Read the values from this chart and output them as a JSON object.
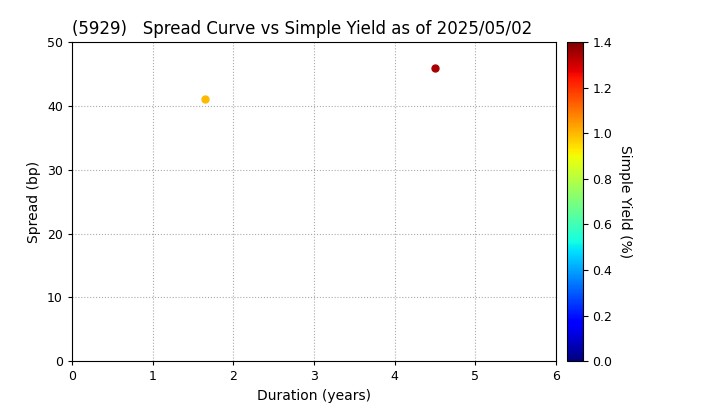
{
  "title": "(5929)   Spread Curve vs Simple Yield as of 2025/05/02",
  "xlabel": "Duration (years)",
  "ylabel": "Spread (bp)",
  "colorbar_label": "Simple Yield (%)",
  "xlim": [
    0,
    6
  ],
  "ylim": [
    0,
    50
  ],
  "xticks": [
    0,
    1,
    2,
    3,
    4,
    5,
    6
  ],
  "yticks": [
    0,
    10,
    20,
    30,
    40,
    50
  ],
  "points": [
    {
      "duration": 1.65,
      "spread": 41.0,
      "simple_yield": 1.0
    },
    {
      "duration": 4.5,
      "spread": 46.0,
      "simple_yield": 1.35
    }
  ],
  "colorbar_vmin": 0.0,
  "colorbar_vmax": 1.4,
  "colorbar_ticks": [
    0.0,
    0.2,
    0.4,
    0.6,
    0.8,
    1.0,
    1.2,
    1.4
  ],
  "cmap": "jet",
  "marker_size": 25,
  "background_color": "#ffffff",
  "grid_color": "#aaaaaa",
  "title_fontsize": 12,
  "label_fontsize": 10,
  "tick_fontsize": 9
}
